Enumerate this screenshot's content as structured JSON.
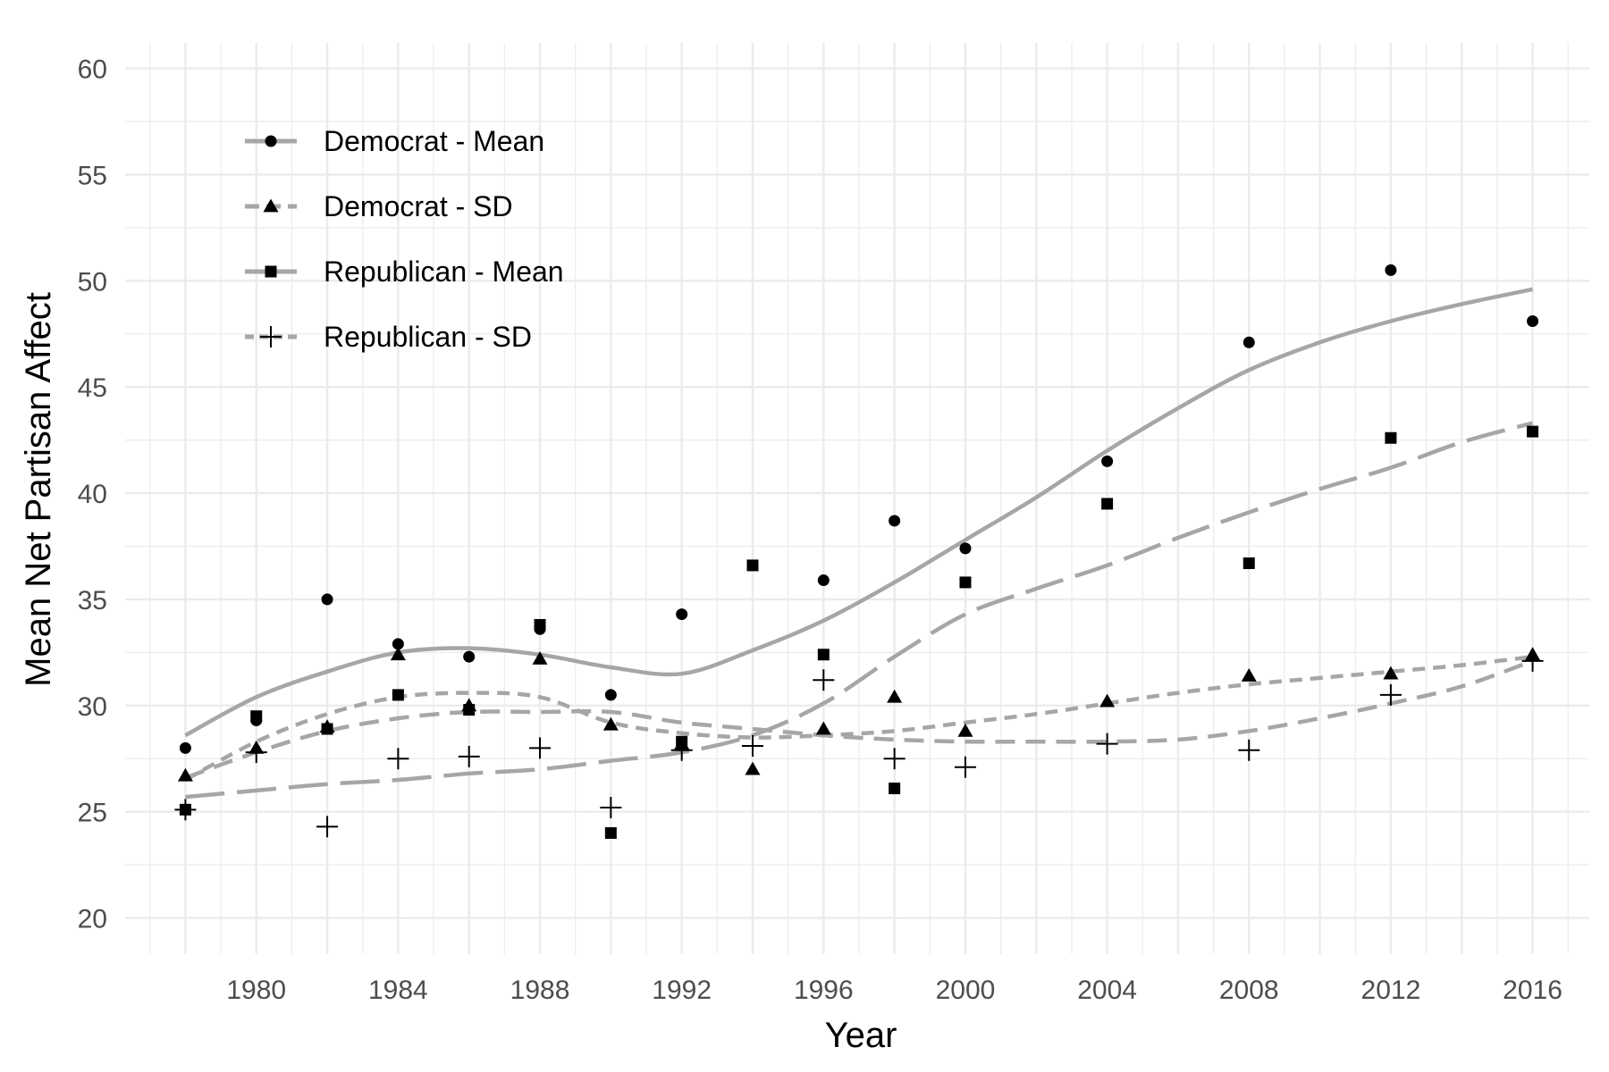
{
  "chart_data": {
    "type": "scatter",
    "title": "",
    "xlabel": "Year",
    "ylabel": "Mean Net Partisan Affect",
    "xlim": [
      1976.3,
      2017.6
    ],
    "ylim": [
      18.3,
      61.2
    ],
    "x_ticks": [
      "1980",
      "1984",
      "1988",
      "1992",
      "1996",
      "2000",
      "2004",
      "2008",
      "2012",
      "2016"
    ],
    "y_ticks": [
      "20",
      "25",
      "30",
      "35",
      "40",
      "45",
      "50",
      "55",
      "60"
    ],
    "grid": true,
    "legend_position": "top-left",
    "line_color": "#a6a6a6",
    "series": [
      {
        "name": "Democrat - Mean",
        "marker": "circle",
        "line_style": "solid",
        "x": [
          1978,
          1980,
          1982,
          1984,
          1986,
          1988,
          1990,
          1992,
          1996,
          1998,
          2000,
          2004,
          2008,
          2012,
          2016
        ],
        "y": [
          28.0,
          29.3,
          35.0,
          32.9,
          32.3,
          33.6,
          30.5,
          34.3,
          35.9,
          38.7,
          37.4,
          41.5,
          47.1,
          50.5,
          48.1
        ],
        "fit_x": [
          1978,
          1980,
          1982,
          1984,
          1986,
          1988,
          1990,
          1992,
          1994,
          1996,
          1998,
          2000,
          2002,
          2004,
          2006,
          2008,
          2010,
          2012,
          2014,
          2016
        ],
        "fit_y": [
          28.6,
          30.4,
          31.6,
          32.5,
          32.7,
          32.4,
          31.8,
          31.5,
          32.6,
          34.0,
          35.8,
          37.8,
          39.8,
          42.0,
          44.0,
          45.8,
          47.1,
          48.1,
          48.9,
          49.6
        ]
      },
      {
        "name": "Democrat - SD",
        "marker": "triangle",
        "line_style": "dashed",
        "x": [
          1978,
          1980,
          1982,
          1984,
          1986,
          1988,
          1990,
          1992,
          1994,
          1996,
          1998,
          2000,
          2004,
          2008,
          2012,
          2016
        ],
        "y": [
          26.7,
          28.0,
          29.0,
          32.4,
          30.0,
          32.2,
          29.1,
          28.2,
          27.0,
          28.9,
          30.4,
          28.8,
          30.2,
          31.4,
          31.5,
          32.4
        ],
        "fit_x": [
          1978,
          1980,
          1982,
          1984,
          1986,
          1988,
          1990,
          1992,
          1994,
          1996,
          1998,
          2000,
          2002,
          2004,
          2006,
          2008,
          2010,
          2012,
          2014,
          2016
        ],
        "fit_y": [
          26.6,
          27.8,
          28.8,
          29.4,
          29.7,
          29.7,
          29.7,
          29.2,
          28.9,
          28.6,
          28.4,
          28.3,
          28.3,
          28.3,
          28.4,
          28.8,
          29.4,
          30.1,
          30.9,
          32.1
        ]
      },
      {
        "name": "Republican - Mean",
        "marker": "square",
        "line_style": "long-dash",
        "x": [
          1978,
          1980,
          1982,
          1984,
          1986,
          1988,
          1990,
          1992,
          1994,
          1996,
          1998,
          2000,
          2004,
          2008,
          2012,
          2016
        ],
        "y": [
          25.1,
          29.5,
          28.9,
          30.5,
          29.8,
          33.8,
          24.0,
          28.3,
          36.6,
          32.4,
          26.1,
          35.8,
          39.5,
          36.7,
          42.6,
          42.9
        ],
        "fit_x": [
          1978,
          1980,
          1982,
          1984,
          1986,
          1988,
          1990,
          1992,
          1994,
          1996,
          1998,
          2000,
          2002,
          2004,
          2006,
          2008,
          2010,
          2012,
          2014,
          2016
        ],
        "fit_y": [
          25.7,
          26.0,
          26.3,
          26.5,
          26.8,
          27.0,
          27.4,
          27.8,
          28.6,
          30.1,
          32.3,
          34.3,
          35.5,
          36.6,
          37.9,
          39.1,
          40.2,
          41.2,
          42.4,
          43.3
        ]
      },
      {
        "name": "Republican - SD",
        "marker": "plus",
        "line_style": "dotted-dash",
        "x": [
          1978,
          1980,
          1982,
          1984,
          1986,
          1988,
          1990,
          1992,
          1994,
          1996,
          1998,
          2000,
          2004,
          2008,
          2012,
          2016
        ],
        "y": [
          25.1,
          27.8,
          24.3,
          27.5,
          27.6,
          28.0,
          25.2,
          27.9,
          28.1,
          31.2,
          27.5,
          27.1,
          28.2,
          27.9,
          30.5,
          32.1
        ],
        "fit_x": [
          1978,
          1980,
          1982,
          1984,
          1986,
          1988,
          1990,
          1992,
          1994,
          1996,
          1998,
          2000,
          2002,
          2004,
          2006,
          2008,
          2010,
          2012,
          2014,
          2016
        ],
        "fit_y": [
          26.5,
          28.3,
          29.6,
          30.4,
          30.6,
          30.4,
          29.2,
          28.7,
          28.5,
          28.6,
          28.8,
          29.2,
          29.6,
          30.1,
          30.6,
          31.0,
          31.3,
          31.6,
          31.9,
          32.3
        ]
      }
    ]
  }
}
